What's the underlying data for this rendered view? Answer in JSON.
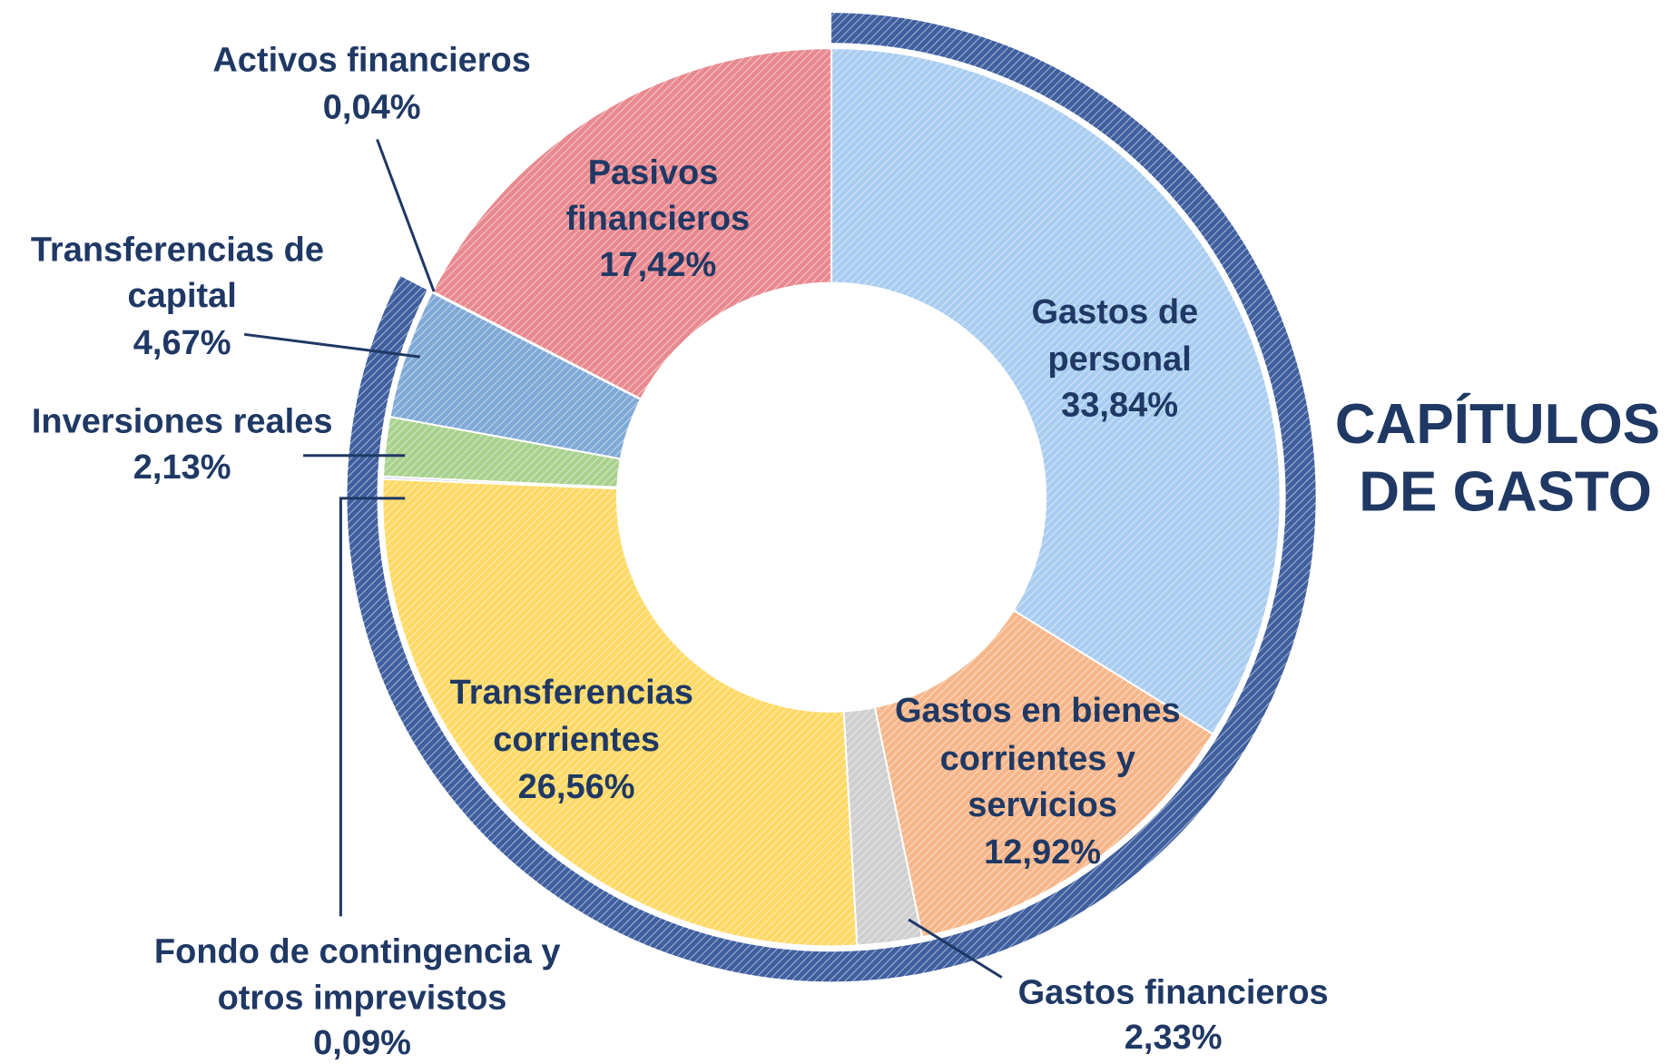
{
  "chart_data": {
    "type": "donut",
    "title": "CAPÍTULOS DE GASTO",
    "categories": [
      "Gastos de personal",
      "Gastos en bienes corrientes y servicios",
      "Gastos financieros",
      "Transferencias corrientes",
      "Fondo de contingencia y otros imprevistos",
      "Inversiones reales",
      "Transferencias de capital",
      "Activos financieros",
      "Pasivos financieros"
    ],
    "values": [
      33.84,
      12.92,
      2.33,
      26.56,
      0.09,
      2.13,
      4.67,
      0.04,
      17.42
    ],
    "value_labels": [
      "33,84%",
      "12,92%",
      "2,33%",
      "26,56%",
      "0,09%",
      "2,13%",
      "4,67%",
      "0,04%",
      "17,42%"
    ],
    "colors": [
      "#a9cdf0",
      "#f6b68a",
      "#cfcfcf",
      "#ffd966",
      "#b9a8f7",
      "#a9d18e",
      "#7fa9d6",
      "#c55a11",
      "#e8898f"
    ]
  }
}
